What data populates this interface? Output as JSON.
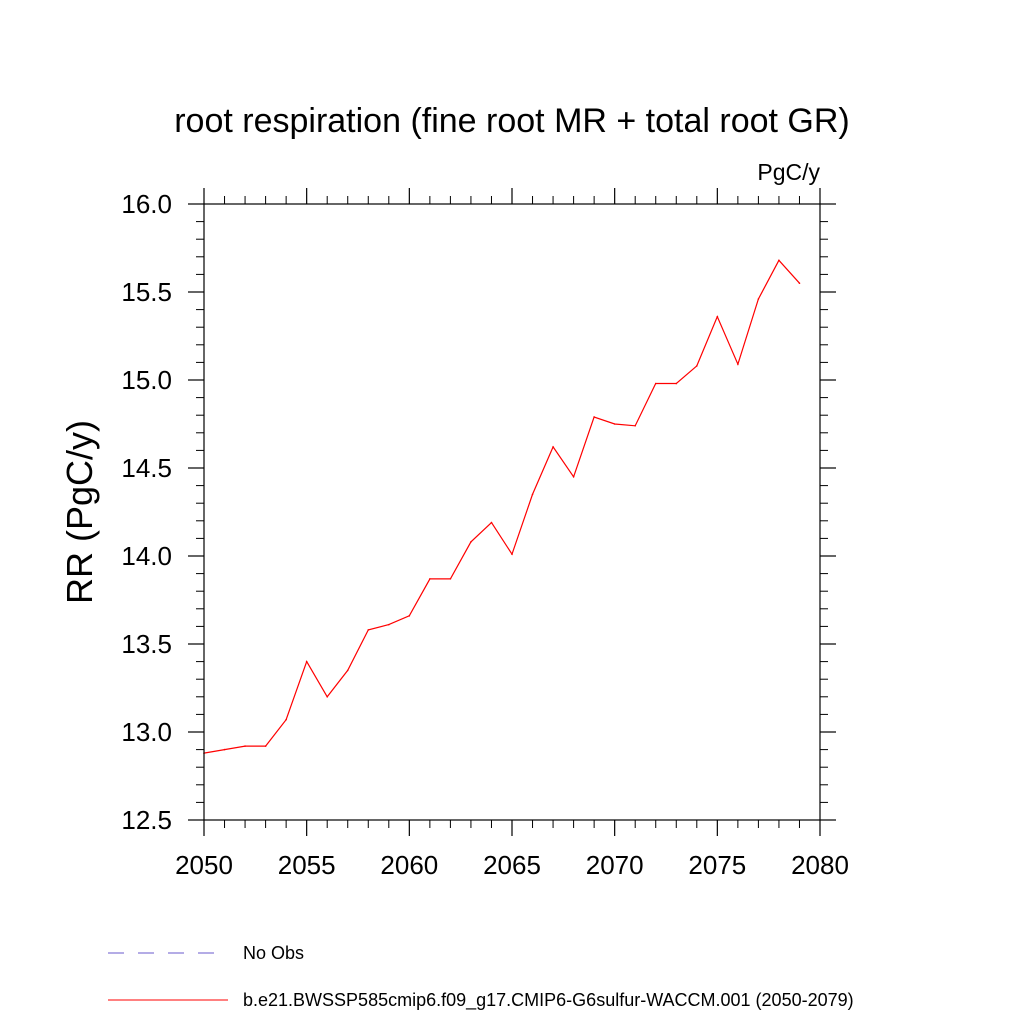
{
  "chart_data": {
    "type": "line",
    "title": "root respiration (fine root MR + total root GR)",
    "units": "PgC/y",
    "ylabel": "RR  (PgC/y)",
    "xlabel": "",
    "xlim": [
      2050,
      2080
    ],
    "ylim": [
      12.5,
      16.0
    ],
    "x_ticks": [
      "2050",
      "2055",
      "2060",
      "2065",
      "2070",
      "2075",
      "2080"
    ],
    "y_ticks": [
      "12.5",
      "13.0",
      "13.5",
      "14.0",
      "14.5",
      "15.0",
      "15.5",
      "16.0"
    ],
    "grid": false,
    "legend_position": "bottom",
    "legend": [
      {
        "label": "No Obs",
        "color": "#6a5acd",
        "style": "dashed"
      },
      {
        "label": "b.e21.BWSSP585cmip6.f09_g17.CMIP6-G6sulfur-WACCM.001 (2050-2079)",
        "color": "#ff0000",
        "style": "solid"
      }
    ],
    "series": [
      {
        "color": "#ff0000",
        "x": [
          2050,
          2051,
          2052,
          2053,
          2054,
          2055,
          2056,
          2057,
          2058,
          2059,
          2060,
          2061,
          2062,
          2063,
          2064,
          2065,
          2066,
          2067,
          2068,
          2069,
          2070,
          2071,
          2072,
          2073,
          2074,
          2075,
          2076,
          2077,
          2078,
          2079
        ],
        "values": [
          12.88,
          12.9,
          12.92,
          12.92,
          13.07,
          13.4,
          13.2,
          13.35,
          13.58,
          13.61,
          13.66,
          13.87,
          13.87,
          14.08,
          14.19,
          14.01,
          14.35,
          14.62,
          14.45,
          14.79,
          14.75,
          14.74,
          14.98,
          14.98,
          15.08,
          15.36,
          15.09,
          15.46,
          15.68,
          15.55
        ]
      }
    ]
  }
}
